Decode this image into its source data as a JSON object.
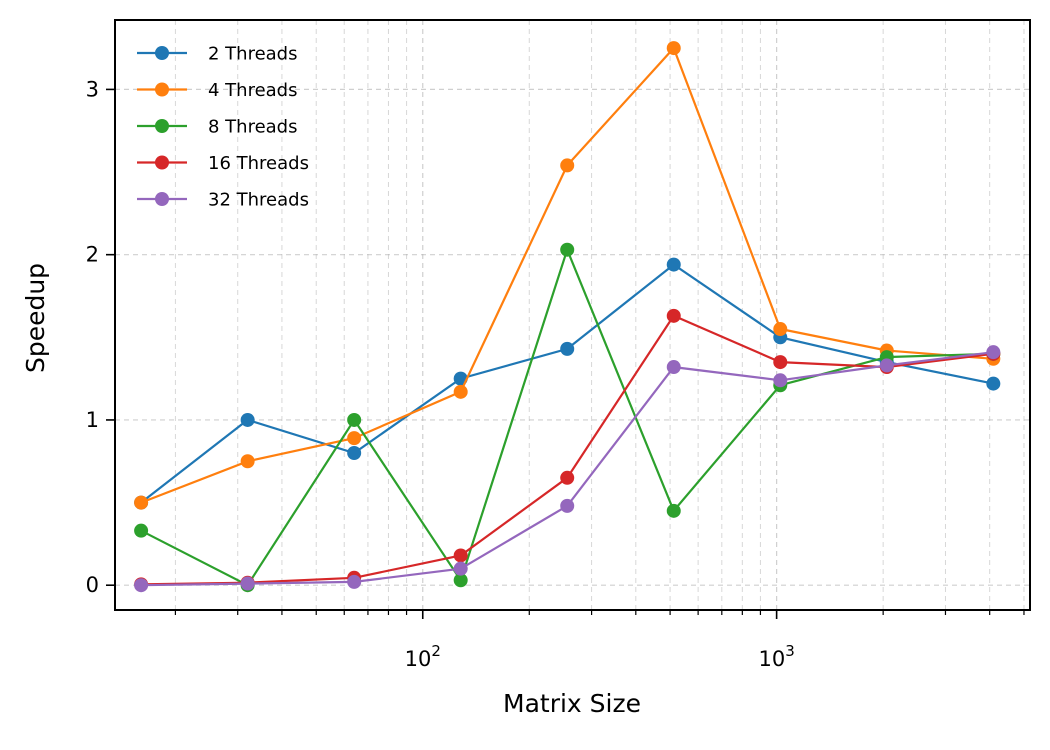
{
  "chart_data": {
    "type": "line",
    "xlabel": "Matrix Size",
    "ylabel": "Speedup",
    "x_scale": "log",
    "xlim": [
      13.5,
      5200
    ],
    "ylim": [
      -0.15,
      3.42
    ],
    "x_tick_labels": [
      {
        "value": 100,
        "base": "10",
        "exp": "2"
      },
      {
        "value": 1000,
        "base": "10",
        "exp": "3"
      }
    ],
    "y_ticks": [
      0,
      1,
      2,
      3
    ],
    "grid": true,
    "legend_position": "top-left",
    "x": [
      16,
      32,
      64,
      128,
      256,
      512,
      1024,
      2048,
      4096
    ],
    "series": [
      {
        "name": "2 Threads",
        "color": "#1f77b4",
        "values": [
          0.5,
          1.0,
          0.8,
          1.25,
          1.43,
          1.94,
          1.5,
          1.35,
          1.22
        ]
      },
      {
        "name": "4 Threads",
        "color": "#ff7f0e",
        "values": [
          0.5,
          0.75,
          0.89,
          1.17,
          2.54,
          3.25,
          1.55,
          1.42,
          1.37
        ]
      },
      {
        "name": "8 Threads",
        "color": "#2ca02c",
        "values": [
          0.33,
          0.0,
          1.0,
          0.03,
          2.03,
          0.45,
          1.21,
          1.38,
          1.4
        ]
      },
      {
        "name": "16 Threads",
        "color": "#d62728",
        "values": [
          0.005,
          0.015,
          0.045,
          0.18,
          0.65,
          1.63,
          1.35,
          1.32,
          1.4
        ]
      },
      {
        "name": "32 Threads",
        "color": "#9467bd",
        "values": [
          0.0,
          0.01,
          0.02,
          0.1,
          0.48,
          1.32,
          1.24,
          1.33,
          1.41
        ]
      }
    ]
  }
}
